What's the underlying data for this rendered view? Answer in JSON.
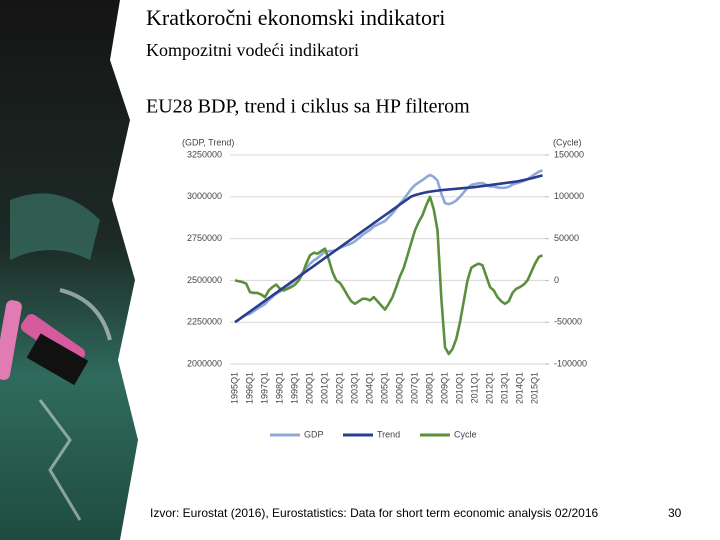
{
  "header": {
    "title": "Kratkoročni ekonomski indikatori",
    "subtitle": "Kompozitni vodeći indikatori"
  },
  "chart_data": {
    "type": "line",
    "title": "EU28 BDP, trend i ciklus sa HP filterom",
    "y_label": "(GDP, Trend)",
    "y2_label": "(Cycle)",
    "categories": [
      "1995Q1",
      null,
      null,
      null,
      "1996Q1",
      null,
      null,
      null,
      "1997Q1",
      null,
      null,
      null,
      "1998Q1",
      null,
      null,
      null,
      "1999Q1",
      null,
      null,
      null,
      "2000Q1",
      null,
      null,
      null,
      "2001Q1",
      null,
      null,
      null,
      "2002Q1",
      null,
      null,
      null,
      "2003Q1",
      null,
      null,
      null,
      "2004Q1",
      null,
      null,
      null,
      "2005Q1",
      null,
      null,
      null,
      "2006Q1",
      null,
      null,
      null,
      "2007Q1",
      null,
      null,
      null,
      "2008Q1",
      null,
      null,
      null,
      "2009Q1",
      null,
      null,
      null,
      "2010Q1",
      null,
      null,
      null,
      "2011Q1",
      null,
      null,
      null,
      "2012Q1",
      null,
      null,
      null,
      "2013Q1",
      null,
      null,
      null,
      "2014Q1",
      null,
      null,
      null,
      "2015Q1",
      null,
      null
    ],
    "series": [
      {
        "name": "GDP",
        "color": "#8ea8d9",
        "values": [
          2250000,
          2265000,
          2280000,
          2294000,
          2300000,
          2315000,
          2331000,
          2345000,
          2358000,
          2382000,
          2402000,
          2421000,
          2432000,
          2446000,
          2464000,
          2482000,
          2501000,
          2522000,
          2546000,
          2574000,
          2600000,
          2619000,
          2634000,
          2653000,
          2672000,
          2675000,
          2676000,
          2682000,
          2695000,
          2704000,
          2712000,
          2721000,
          2734000,
          2753000,
          2772000,
          2788000,
          2802000,
          2822000,
          2833000,
          2844000,
          2855000,
          2878000,
          2902000,
          2930000,
          2959000,
          2985000,
          3016000,
          3047000,
          3070000,
          3086000,
          3100000,
          3117000,
          3131000,
          3119000,
          3097000,
          3020000,
          2962000,
          2956000,
          2964000,
          2978000,
          3000000,
          3027000,
          3054000,
          3071000,
          3076000,
          3081000,
          3082000,
          3072000,
          3062000,
          3061000,
          3056000,
          3054000,
          3054000,
          3060000,
          3073000,
          3081000,
          3087000,
          3095000,
          3105000,
          3120000,
          3136000,
          3150000,
          3158000
        ]
      },
      {
        "name": "Trend",
        "color": "#2b3d8e",
        "values": [
          2250000,
          2266000,
          2282000,
          2298000,
          2314000,
          2330000,
          2346000,
          2362000,
          2378000,
          2394000,
          2410000,
          2426000,
          2442000,
          2458000,
          2474000,
          2490000,
          2506000,
          2522000,
          2538000,
          2554000,
          2570000,
          2586000,
          2602000,
          2618000,
          2634000,
          2650000,
          2666000,
          2682000,
          2698000,
          2714000,
          2730000,
          2746000,
          2762000,
          2778000,
          2794000,
          2810000,
          2826000,
          2842000,
          2858000,
          2874000,
          2890000,
          2906000,
          2922000,
          2938000,
          2954000,
          2970000,
          2986000,
          3002000,
          3010000,
          3016000,
          3022000,
          3027000,
          3031000,
          3034000,
          3037000,
          3040000,
          3042000,
          3044000,
          3046000,
          3048000,
          3050000,
          3052000,
          3054000,
          3056000,
          3058000,
          3061000,
          3064000,
          3067000,
          3070000,
          3073000,
          3076000,
          3079000,
          3082000,
          3085000,
          3088000,
          3091000,
          3095000,
          3100000,
          3105000,
          3110000,
          3116000,
          3122000,
          3128000
        ]
      },
      {
        "name": "Cycle",
        "color": "#5b8f3c",
        "axis": "y2",
        "values": [
          0,
          -1000,
          -2000,
          -4000,
          -14000,
          -15000,
          -15000,
          -17000,
          -20000,
          -12000,
          -8000,
          -5000,
          -10000,
          -12000,
          -10000,
          -8000,
          -5000,
          0,
          8000,
          20000,
          30000,
          33000,
          32000,
          35000,
          38000,
          25000,
          10000,
          0,
          -3000,
          -10000,
          -18000,
          -25000,
          -28000,
          -25000,
          -22000,
          -22000,
          -24000,
          -20000,
          -25000,
          -30000,
          -35000,
          -28000,
          -20000,
          -8000,
          5000,
          15000,
          30000,
          45000,
          60000,
          70000,
          78000,
          90000,
          100000,
          85000,
          60000,
          -20000,
          -80000,
          -88000,
          -82000,
          -70000,
          -50000,
          -25000,
          0,
          15000,
          18000,
          20000,
          18000,
          5000,
          -8000,
          -12000,
          -20000,
          -25000,
          -28000,
          -25000,
          -15000,
          -10000,
          -8000,
          -5000,
          0,
          10000,
          20000,
          28000,
          30000
        ]
      }
    ],
    "ylim": [
      2000000,
      3250000
    ],
    "yticks": [
      2000000,
      2250000,
      2500000,
      2750000,
      3000000,
      3250000
    ],
    "y2lim": [
      -100000,
      150000
    ],
    "y2ticks": [
      -100000,
      -50000,
      0,
      50000,
      100000,
      150000
    ],
    "grid": true,
    "legend": "bottom"
  },
  "footer": {
    "source": "Izvor: Eurostat (2016), Eurostatistics: Data for short term economic analysis 02/2016",
    "page": "30"
  }
}
